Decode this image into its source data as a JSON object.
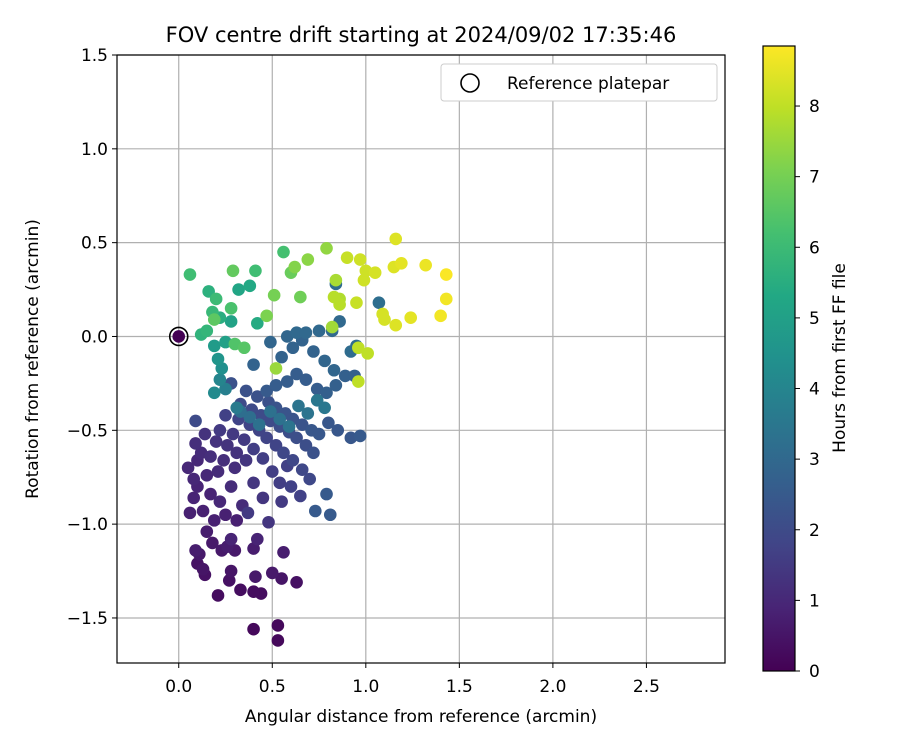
{
  "chart_data": {
    "type": "scatter",
    "title": "FOV centre drift starting at 2024/09/02 17:35:46",
    "xlabel": "Angular distance from reference (arcmin)",
    "ylabel": "Rotation from reference (arcmin)",
    "xlim": [
      -0.33,
      2.92
    ],
    "ylim": [
      -1.74,
      1.5
    ],
    "x_ticks": [
      0.0,
      0.5,
      1.0,
      1.5,
      2.0,
      2.5
    ],
    "x_tick_labels": [
      "0.0",
      "0.5",
      "1.0",
      "1.5",
      "2.0",
      "2.5"
    ],
    "y_ticks": [
      1.5,
      1.0,
      0.5,
      0.0,
      -0.5,
      -1.0,
      -1.5
    ],
    "y_tick_labels": [
      "1.5",
      "1.0",
      "0.5",
      "0.0",
      "−0.5",
      "−1.0",
      "−1.5"
    ],
    "grid": true,
    "legend": {
      "position": "top-right",
      "entries": [
        "Reference platepar"
      ]
    },
    "colorbar": {
      "label": "Hours from first FF file",
      "range": [
        0,
        8.85
      ],
      "ticks": [
        0,
        1,
        2,
        3,
        4,
        5,
        6,
        7,
        8
      ],
      "tick_labels": [
        "0",
        "1",
        "2",
        "3",
        "4",
        "5",
        "6",
        "7",
        "8"
      ],
      "colormap": "viridis"
    },
    "reference_point": {
      "x": 0.0,
      "y": 0.0,
      "hours": 0
    },
    "points": [
      [
        0.0,
        0.0,
        0.0
      ],
      [
        0.53,
        -1.54,
        0.2
      ],
      [
        0.53,
        -1.62,
        0.2
      ],
      [
        0.4,
        -1.56,
        0.2
      ],
      [
        0.21,
        -1.38,
        0.3
      ],
      [
        0.33,
        -1.35,
        0.3
      ],
      [
        0.44,
        -1.37,
        0.3
      ],
      [
        0.4,
        -1.36,
        0.3
      ],
      [
        0.14,
        -1.27,
        0.4
      ],
      [
        0.27,
        -1.3,
        0.4
      ],
      [
        0.1,
        -1.21,
        0.4
      ],
      [
        0.63,
        -1.31,
        0.4
      ],
      [
        0.13,
        -1.24,
        0.5
      ],
      [
        0.28,
        -1.25,
        0.5
      ],
      [
        0.55,
        -1.29,
        0.5
      ],
      [
        0.41,
        -1.28,
        0.6
      ],
      [
        0.5,
        -1.26,
        0.6
      ],
      [
        0.11,
        -1.16,
        0.6
      ],
      [
        0.18,
        -1.1,
        0.6
      ],
      [
        0.23,
        -1.14,
        0.6
      ],
      [
        0.3,
        -1.14,
        0.6
      ],
      [
        0.09,
        -1.14,
        0.7
      ],
      [
        0.26,
        -1.12,
        0.7
      ],
      [
        0.4,
        -1.13,
        0.7
      ],
      [
        0.56,
        -1.15,
        0.7
      ],
      [
        0.15,
        -1.04,
        0.7
      ],
      [
        0.19,
        -0.98,
        0.8
      ],
      [
        0.06,
        -0.94,
        0.8
      ],
      [
        0.13,
        -0.93,
        0.8
      ],
      [
        0.25,
        -0.95,
        0.8
      ],
      [
        0.31,
        -0.98,
        0.8
      ],
      [
        0.42,
        -1.08,
        0.9
      ],
      [
        0.28,
        -1.08,
        0.9
      ],
      [
        0.08,
        -0.86,
        0.9
      ],
      [
        0.1,
        -0.8,
        0.9
      ],
      [
        0.17,
        -0.84,
        0.9
      ],
      [
        0.22,
        -0.88,
        1.0
      ],
      [
        0.05,
        -0.7,
        1.0
      ],
      [
        0.1,
        -0.66,
        1.0
      ],
      [
        0.08,
        -0.76,
        1.0
      ],
      [
        0.15,
        -0.74,
        1.0
      ],
      [
        0.21,
        -0.72,
        1.1
      ],
      [
        0.28,
        -0.8,
        1.1
      ],
      [
        0.34,
        -0.9,
        1.1
      ],
      [
        0.12,
        -0.62,
        1.1
      ],
      [
        0.17,
        -0.64,
        1.2
      ],
      [
        0.24,
        -0.66,
        1.2
      ],
      [
        0.3,
        -0.7,
        1.2
      ],
      [
        0.09,
        -0.57,
        1.2
      ],
      [
        0.2,
        -0.56,
        1.3
      ],
      [
        0.14,
        -0.52,
        1.3
      ],
      [
        0.26,
        -0.58,
        1.3
      ],
      [
        0.31,
        -0.62,
        1.3
      ],
      [
        0.36,
        -0.66,
        1.4
      ],
      [
        0.4,
        -0.78,
        1.4
      ],
      [
        0.45,
        -0.86,
        1.4
      ],
      [
        0.48,
        -0.99,
        1.4
      ],
      [
        0.37,
        -0.94,
        1.5
      ],
      [
        0.55,
        -0.88,
        1.5
      ],
      [
        0.22,
        -0.5,
        1.5
      ],
      [
        0.29,
        -0.52,
        1.5
      ],
      [
        0.35,
        -0.55,
        1.5
      ],
      [
        0.4,
        -0.6,
        1.6
      ],
      [
        0.45,
        -0.65,
        1.6
      ],
      [
        0.5,
        -0.72,
        1.6
      ],
      [
        0.54,
        -0.78,
        1.6
      ],
      [
        0.6,
        -0.8,
        1.7
      ],
      [
        0.65,
        -0.85,
        1.7
      ],
      [
        0.58,
        -0.69,
        1.7
      ],
      [
        0.25,
        -0.42,
        1.7
      ],
      [
        0.32,
        -0.44,
        1.8
      ],
      [
        0.38,
        -0.47,
        1.8
      ],
      [
        0.43,
        -0.5,
        1.8
      ],
      [
        0.47,
        -0.54,
        1.8
      ],
      [
        0.52,
        -0.58,
        1.8
      ],
      [
        0.56,
        -0.62,
        1.9
      ],
      [
        0.61,
        -0.66,
        1.9
      ],
      [
        0.66,
        -0.71,
        1.9
      ],
      [
        0.7,
        -0.76,
        1.9
      ],
      [
        0.09,
        -0.45,
        2.0
      ],
      [
        0.33,
        -0.36,
        2.0
      ],
      [
        0.39,
        -0.39,
        2.0
      ],
      [
        0.44,
        -0.42,
        2.0
      ],
      [
        0.49,
        -0.45,
        2.0
      ],
      [
        0.54,
        -0.48,
        2.1
      ],
      [
        0.59,
        -0.51,
        2.1
      ],
      [
        0.63,
        -0.54,
        2.1
      ],
      [
        0.68,
        -0.58,
        2.1
      ],
      [
        0.72,
        -0.62,
        2.2
      ],
      [
        0.28,
        -0.25,
        2.2
      ],
      [
        0.36,
        -0.29,
        2.2
      ],
      [
        0.42,
        -0.32,
        2.2
      ],
      [
        0.48,
        -0.35,
        2.2
      ],
      [
        0.52,
        -0.38,
        2.3
      ],
      [
        0.57,
        -0.41,
        2.3
      ],
      [
        0.61,
        -0.44,
        2.3
      ],
      [
        0.66,
        -0.47,
        2.3
      ],
      [
        0.71,
        -0.5,
        2.4
      ],
      [
        0.75,
        -0.52,
        2.4
      ],
      [
        0.8,
        -0.46,
        2.4
      ],
      [
        0.85,
        -0.5,
        2.4
      ],
      [
        0.92,
        -0.54,
        2.4
      ],
      [
        0.97,
        -0.53,
        2.5
      ],
      [
        0.79,
        -0.84,
        2.5
      ],
      [
        0.73,
        -0.93,
        2.5
      ],
      [
        0.81,
        -0.95,
        2.5
      ],
      [
        0.47,
        -0.29,
        2.5
      ],
      [
        0.52,
        -0.26,
        2.6
      ],
      [
        0.58,
        -0.24,
        2.6
      ],
      [
        0.63,
        -0.2,
        2.6
      ],
      [
        0.68,
        -0.23,
        2.6
      ],
      [
        0.74,
        -0.28,
        2.6
      ],
      [
        0.79,
        -0.3,
        2.7
      ],
      [
        0.84,
        -0.26,
        2.7
      ],
      [
        0.89,
        -0.21,
        2.7
      ],
      [
        0.94,
        -0.21,
        2.7
      ],
      [
        0.4,
        -0.15,
        2.8
      ],
      [
        0.55,
        -0.11,
        2.8
      ],
      [
        0.61,
        -0.06,
        2.8
      ],
      [
        0.66,
        -0.02,
        2.8
      ],
      [
        0.72,
        -0.08,
        2.8
      ],
      [
        0.78,
        -0.13,
        2.9
      ],
      [
        0.83,
        -0.18,
        2.9
      ],
      [
        0.49,
        -0.03,
        2.9
      ],
      [
        0.58,
        0.0,
        2.9
      ],
      [
        0.63,
        0.02,
        3.0
      ],
      [
        0.68,
        0.02,
        3.0
      ],
      [
        0.75,
        0.03,
        3.0
      ],
      [
        0.82,
        0.03,
        3.0
      ],
      [
        0.86,
        0.08,
        3.0
      ],
      [
        0.92,
        -0.08,
        3.1
      ],
      [
        0.95,
        -0.05,
        3.1
      ],
      [
        0.84,
        0.28,
        3.1
      ],
      [
        1.07,
        0.18,
        3.2
      ],
      [
        0.33,
        -0.4,
        3.2
      ],
      [
        0.38,
        -0.43,
        3.2
      ],
      [
        0.43,
        -0.47,
        3.3
      ],
      [
        0.49,
        -0.4,
        3.3
      ],
      [
        0.54,
        -0.44,
        3.3
      ],
      [
        0.59,
        -0.48,
        3.4
      ],
      [
        0.64,
        -0.37,
        3.4
      ],
      [
        0.69,
        -0.41,
        3.4
      ],
      [
        0.74,
        -0.34,
        3.5
      ],
      [
        0.78,
        -0.38,
        3.5
      ],
      [
        0.31,
        -0.38,
        3.6
      ],
      [
        0.25,
        -0.28,
        3.8
      ],
      [
        0.22,
        -0.23,
        4.0
      ],
      [
        0.19,
        -0.3,
        4.2
      ],
      [
        0.23,
        -0.17,
        4.4
      ],
      [
        0.21,
        -0.12,
        4.6
      ],
      [
        0.19,
        -0.05,
        4.8
      ],
      [
        0.25,
        -0.03,
        5.0
      ],
      [
        0.28,
        0.08,
        5.1
      ],
      [
        0.32,
        0.25,
        5.2
      ],
      [
        0.38,
        0.27,
        5.3
      ],
      [
        0.42,
        0.07,
        5.4
      ],
      [
        0.22,
        0.1,
        5.5
      ],
      [
        0.16,
        0.24,
        5.6
      ],
      [
        0.12,
        0.01,
        5.7
      ],
      [
        0.15,
        0.03,
        5.8
      ],
      [
        0.18,
        0.13,
        5.9
      ],
      [
        0.2,
        0.2,
        6.0
      ],
      [
        0.06,
        0.33,
        6.1
      ],
      [
        0.41,
        0.35,
        6.1
      ],
      [
        0.56,
        0.45,
        6.2
      ],
      [
        0.28,
        0.15,
        6.3
      ],
      [
        0.3,
        -0.04,
        6.4
      ],
      [
        0.35,
        -0.06,
        6.5
      ],
      [
        0.19,
        0.09,
        6.6
      ],
      [
        0.29,
        0.35,
        6.7
      ],
      [
        0.6,
        0.34,
        6.8
      ],
      [
        0.65,
        0.21,
        6.9
      ],
      [
        0.51,
        0.22,
        7.0
      ],
      [
        0.47,
        0.11,
        7.1
      ],
      [
        0.62,
        0.37,
        7.2
      ],
      [
        0.69,
        0.41,
        7.3
      ],
      [
        0.79,
        0.47,
        7.4
      ],
      [
        0.52,
        -0.17,
        7.5
      ],
      [
        0.82,
        0.05,
        7.6
      ],
      [
        0.84,
        0.3,
        7.7
      ],
      [
        0.86,
        0.2,
        7.8
      ],
      [
        0.86,
        0.17,
        7.9
      ],
      [
        0.83,
        0.21,
        7.9
      ],
      [
        0.96,
        -0.06,
        8.0
      ],
      [
        1.01,
        -0.09,
        8.0
      ],
      [
        0.96,
        -0.24,
        8.0
      ],
      [
        0.95,
        0.18,
        8.1
      ],
      [
        0.9,
        0.42,
        8.1
      ],
      [
        0.97,
        0.41,
        8.2
      ],
      [
        0.99,
        0.3,
        8.2
      ],
      [
        1.0,
        0.35,
        8.2
      ],
      [
        1.05,
        0.34,
        8.3
      ],
      [
        1.09,
        0.12,
        8.3
      ],
      [
        1.1,
        0.09,
        8.3
      ],
      [
        1.15,
        0.37,
        8.4
      ],
      [
        1.16,
        0.52,
        8.4
      ],
      [
        1.16,
        0.06,
        8.4
      ],
      [
        1.19,
        0.39,
        8.5
      ],
      [
        1.24,
        0.1,
        8.5
      ],
      [
        1.32,
        0.38,
        8.6
      ],
      [
        1.4,
        0.11,
        8.7
      ],
      [
        1.43,
        0.2,
        8.7
      ],
      [
        1.43,
        0.33,
        8.8
      ]
    ]
  }
}
